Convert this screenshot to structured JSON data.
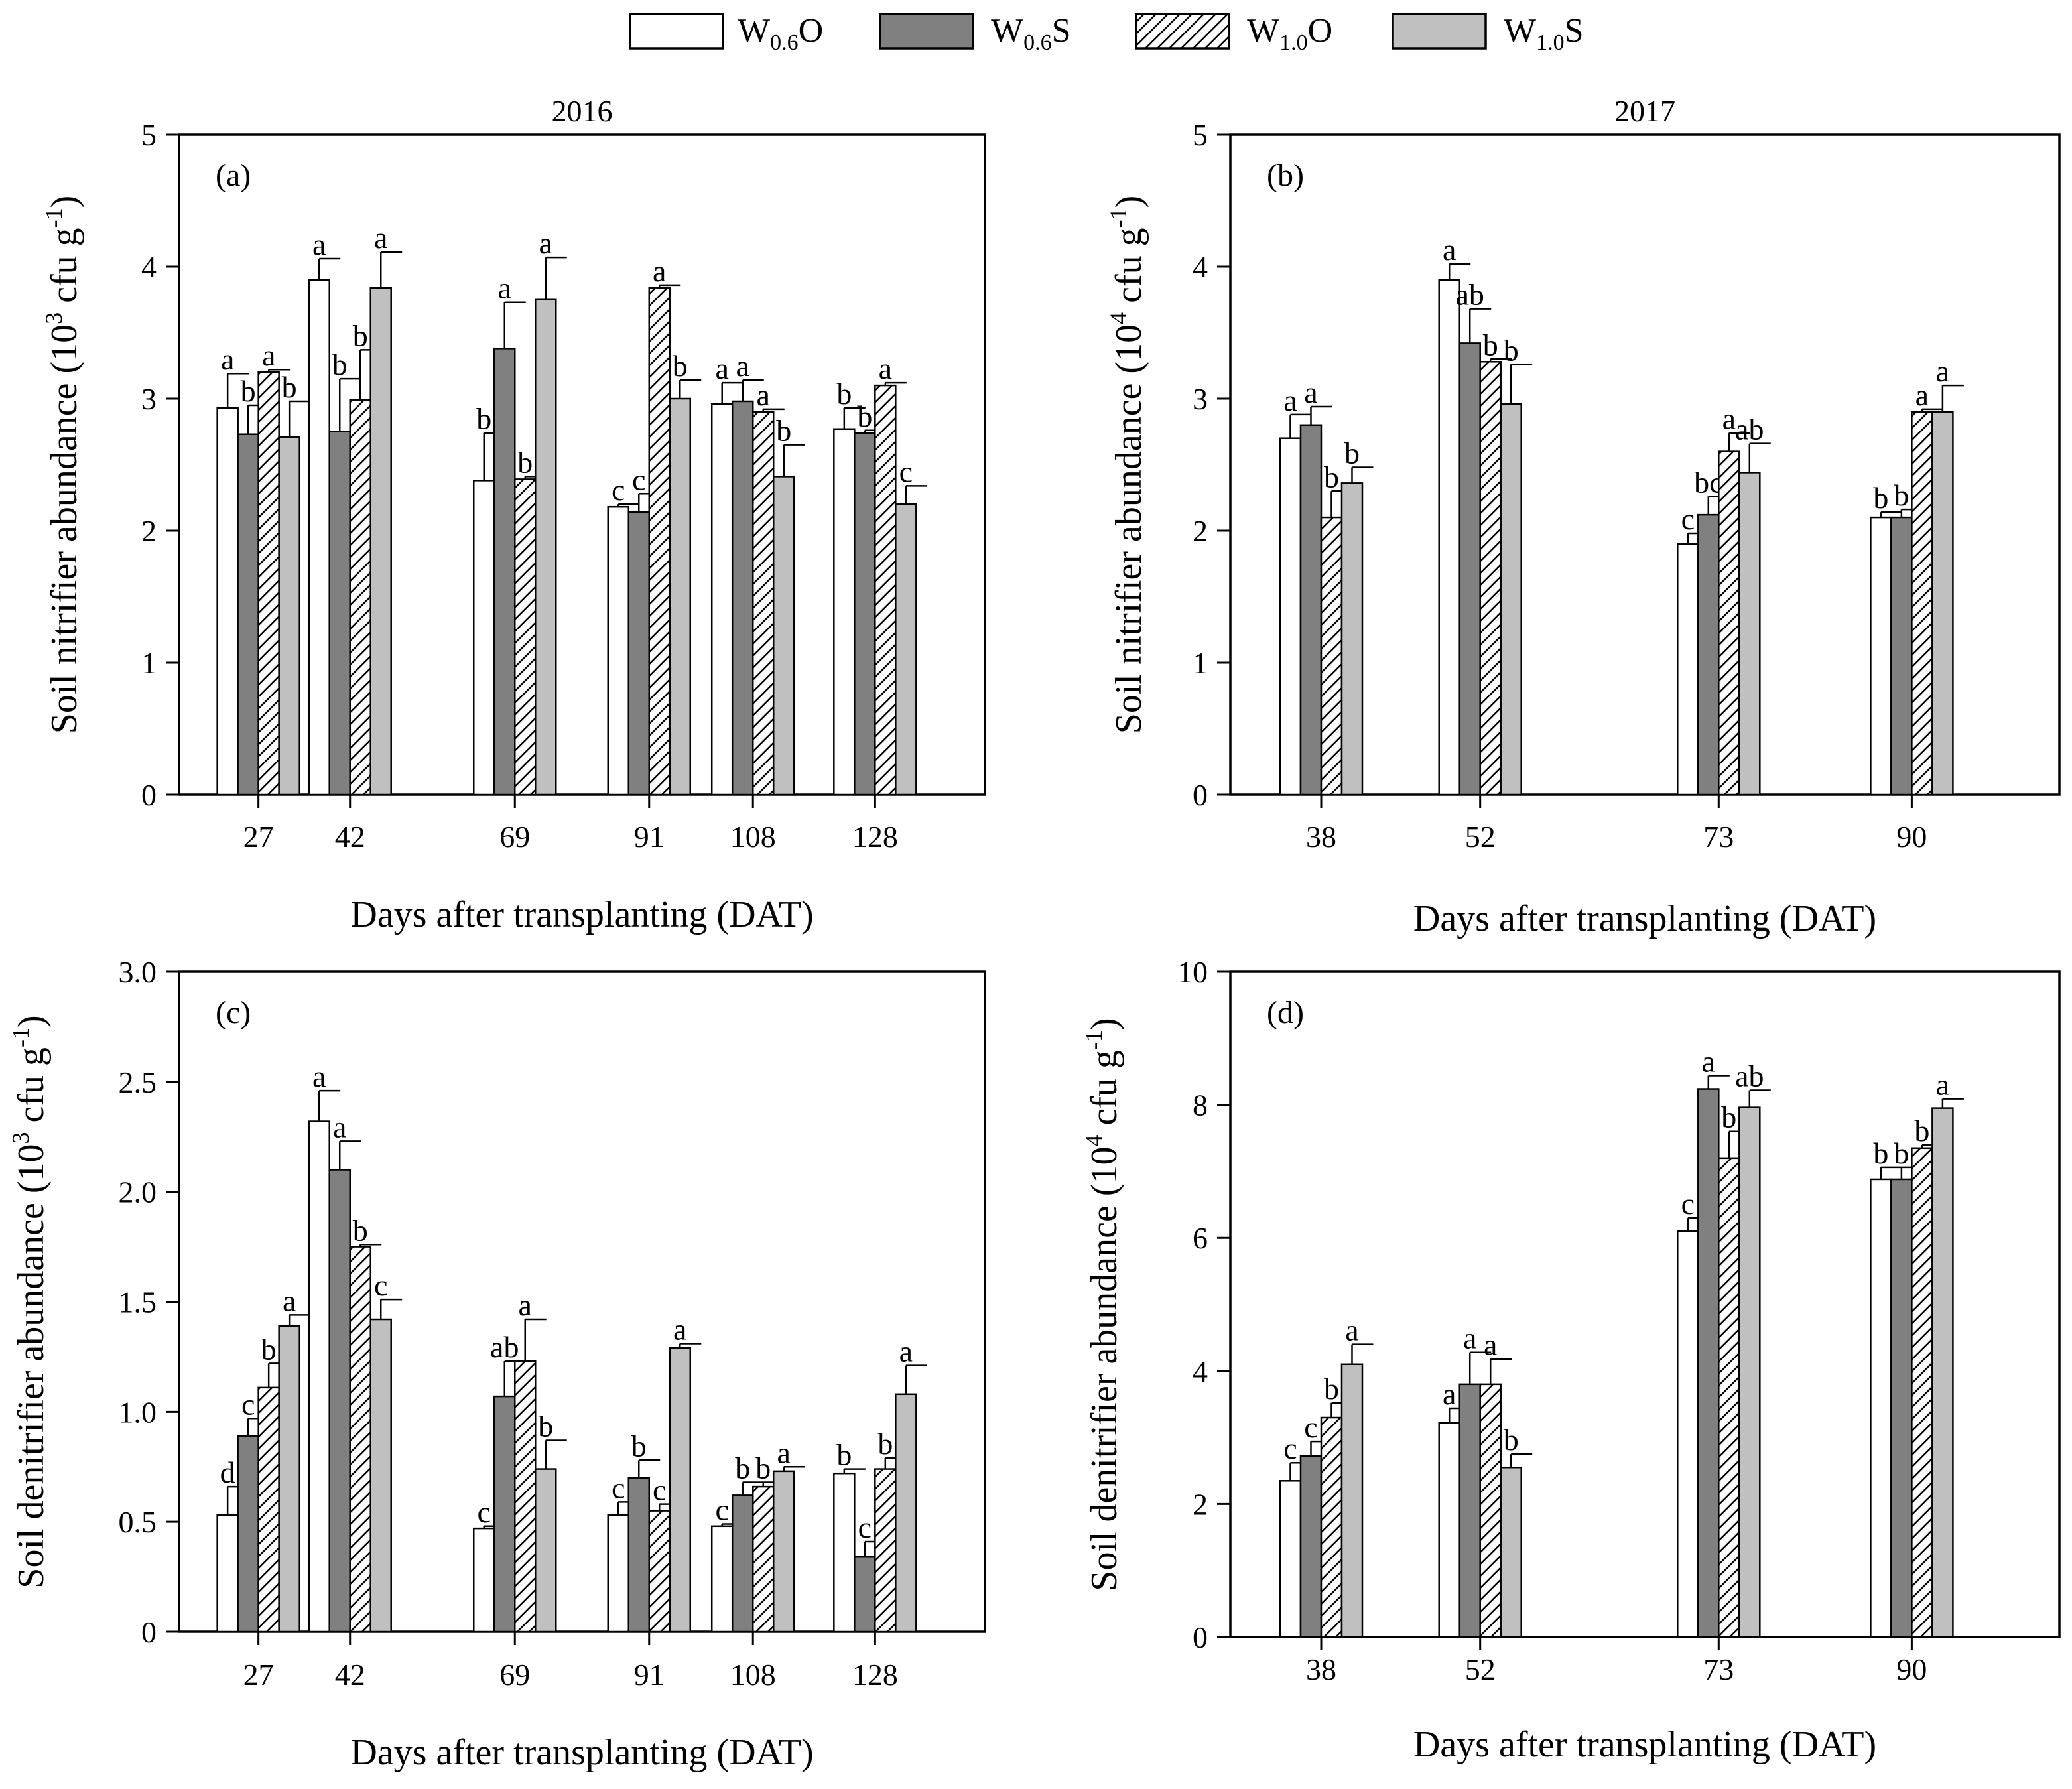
{
  "legend": [
    {
      "base": "W",
      "sub": "0.6",
      "suffix": "O",
      "style": "white"
    },
    {
      "base": "W",
      "sub": "0.6",
      "suffix": "S",
      "style": "dark"
    },
    {
      "base": "W",
      "sub": "1.0",
      "suffix": "O",
      "style": "hatch"
    },
    {
      "base": "W",
      "sub": "1.0",
      "suffix": "S",
      "style": "light"
    }
  ],
  "colors": {
    "white": "#ffffff",
    "dark": "#808080",
    "light": "#c0c0c0",
    "stroke": "#000000"
  },
  "chart_data": [
    {
      "type": "bar",
      "tag": "(a)",
      "title": "2016",
      "xlabel": "Days after transplanting (DAT)",
      "ylabel_main": "Soil nitrifier abundance (10",
      "ylabel_exp": "3",
      "ylabel_unit": " cfu g",
      "ylabel_unit_exp": "-1",
      "ylabel_close": ")",
      "ylim": [
        0,
        5
      ],
      "yticks": [
        0,
        1,
        2,
        3,
        4,
        5
      ],
      "ytick_labels": [
        "0",
        "1",
        "2",
        "3",
        "4",
        "5"
      ],
      "xlim": [
        14,
        146
      ],
      "categories": [
        "27",
        "42",
        "69",
        "91",
        "108",
        "128"
      ],
      "x": [
        27,
        42,
        69,
        91,
        108,
        128
      ],
      "series": [
        {
          "name": "W0.6O",
          "values": [
            2.93,
            3.9,
            2.38,
            2.18,
            2.96,
            2.77
          ],
          "errors": [
            0.26,
            0.16,
            0.36,
            0.02,
            0.16,
            0.16
          ],
          "letters": [
            "a",
            "a",
            "b",
            "c",
            "a",
            "b"
          ]
        },
        {
          "name": "W0.6S",
          "values": [
            2.73,
            2.75,
            3.38,
            2.14,
            2.98,
            2.74
          ],
          "errors": [
            0.22,
            0.4,
            0.35,
            0.14,
            0.16,
            0.02
          ],
          "letters": [
            "b",
            "b",
            "a",
            "c",
            "a",
            "b"
          ]
        },
        {
          "name": "W1.0O",
          "values": [
            3.2,
            2.99,
            2.39,
            3.84,
            2.9,
            3.1
          ],
          "errors": [
            0.02,
            0.38,
            0.02,
            0.02,
            0.02,
            0.02
          ],
          "letters": [
            "a",
            "b",
            "b",
            "a",
            "a",
            "a"
          ]
        },
        {
          "name": "W1.0S",
          "values": [
            2.71,
            3.84,
            3.75,
            3.0,
            2.41,
            2.2
          ],
          "errors": [
            0.27,
            0.27,
            0.32,
            0.14,
            0.24,
            0.14
          ],
          "letters": [
            "b",
            "a",
            "a",
            "b",
            "b",
            "c"
          ]
        }
      ]
    },
    {
      "type": "bar",
      "tag": "(b)",
      "title": "2017",
      "xlabel": "Days after transplanting (DAT)",
      "ylabel_main": "Soil nitrifier abundance (10",
      "ylabel_exp": "4",
      "ylabel_unit": " cfu g",
      "ylabel_unit_exp": "-1",
      "ylabel_close": ")",
      "ylim": [
        0,
        5
      ],
      "yticks": [
        0,
        1,
        2,
        3,
        4,
        5
      ],
      "ytick_labels": [
        "0",
        "1",
        "2",
        "3",
        "4",
        "5"
      ],
      "xlim": [
        30,
        103
      ],
      "categories": [
        "38",
        "52",
        "73",
        "90"
      ],
      "x": [
        38,
        52,
        73,
        90
      ],
      "series": [
        {
          "name": "W0.6O",
          "values": [
            2.7,
            3.9,
            1.9,
            2.1
          ],
          "errors": [
            0.18,
            0.12,
            0.08,
            0.04
          ],
          "letters": [
            "a",
            "a",
            "c",
            "b"
          ]
        },
        {
          "name": "W0.6S",
          "values": [
            2.8,
            3.42,
            2.12,
            2.1
          ],
          "errors": [
            0.14,
            0.26,
            0.14,
            0.06
          ],
          "letters": [
            "a",
            "ab",
            "bc",
            "b"
          ]
        },
        {
          "name": "W1.0O",
          "values": [
            2.1,
            3.28,
            2.6,
            2.9
          ],
          "errors": [
            0.2,
            0.02,
            0.14,
            0.02
          ],
          "letters": [
            "b",
            "b",
            "a",
            "a"
          ]
        },
        {
          "name": "W1.0S",
          "values": [
            2.36,
            2.96,
            2.44,
            2.9
          ],
          "errors": [
            0.12,
            0.3,
            0.22,
            0.2
          ],
          "letters": [
            "b",
            "b",
            "ab",
            "a"
          ]
        }
      ]
    },
    {
      "type": "bar",
      "tag": "(c)",
      "title": "",
      "xlabel": "Days after transplanting (DAT)",
      "ylabel_main": "Soil denitrifier abundance (10",
      "ylabel_exp": "3",
      "ylabel_unit": " cfu g",
      "ylabel_unit_exp": "-1",
      "ylabel_close": ")",
      "ylim": [
        0,
        3
      ],
      "yticks": [
        0,
        0.5,
        1,
        1.5,
        2,
        2.5,
        3
      ],
      "ytick_labels": [
        "0",
        "0.5",
        "1.0",
        "1.5",
        "2.0",
        "2.5",
        "3.0"
      ],
      "xlim": [
        14,
        146
      ],
      "categories": [
        "27",
        "42",
        "69",
        "91",
        "108",
        "128"
      ],
      "x": [
        27,
        42,
        69,
        91,
        108,
        128
      ],
      "series": [
        {
          "name": "W0.6O",
          "values": [
            0.53,
            2.32,
            0.47,
            0.53,
            0.48,
            0.72
          ],
          "errors": [
            0.13,
            0.14,
            0.01,
            0.06,
            0.01,
            0.02
          ],
          "letters": [
            "d",
            "a",
            "c",
            "c",
            "c",
            "b"
          ]
        },
        {
          "name": "W0.6S",
          "values": [
            0.89,
            2.1,
            1.07,
            0.7,
            0.62,
            0.34
          ],
          "errors": [
            0.08,
            0.13,
            0.16,
            0.08,
            0.06,
            0.07
          ],
          "letters": [
            "c",
            "a",
            "ab",
            "b",
            "b",
            "c"
          ]
        },
        {
          "name": "W1.0O",
          "values": [
            1.11,
            1.75,
            1.23,
            0.55,
            0.66,
            0.74
          ],
          "errors": [
            0.11,
            0.01,
            0.19,
            0.03,
            0.02,
            0.05
          ],
          "letters": [
            "b",
            "b",
            "a",
            "c",
            "b",
            "b"
          ]
        },
        {
          "name": "W1.0S",
          "values": [
            1.39,
            1.42,
            0.74,
            1.29,
            0.73,
            1.08
          ],
          "errors": [
            0.05,
            0.09,
            0.13,
            0.02,
            0.02,
            0.13
          ],
          "letters": [
            "a",
            "c",
            "b",
            "a",
            "a",
            "a"
          ]
        }
      ]
    },
    {
      "type": "bar",
      "tag": "(d)",
      "title": "",
      "xlabel": "Days after transplanting (DAT)",
      "ylabel_main": "Soil denitrifier abundance (10",
      "ylabel_exp": "4",
      "ylabel_unit": " cfu g",
      "ylabel_unit_exp": "-1",
      "ylabel_close": ")",
      "ylim": [
        0,
        10
      ],
      "yticks": [
        0,
        2,
        4,
        6,
        8,
        10
      ],
      "ytick_labels": [
        "0",
        "2",
        "4",
        "6",
        "8",
        "10"
      ],
      "xlim": [
        30,
        103
      ],
      "categories": [
        "38",
        "52",
        "73",
        "90"
      ],
      "x": [
        38,
        52,
        73,
        90
      ],
      "series": [
        {
          "name": "W0.6O",
          "values": [
            2.35,
            3.22,
            6.1,
            6.88
          ],
          "errors": [
            0.27,
            0.22,
            0.2,
            0.18
          ],
          "letters": [
            "c",
            "a",
            "c",
            "b"
          ]
        },
        {
          "name": "W0.6S",
          "values": [
            2.72,
            3.8,
            8.24,
            6.88
          ],
          "errors": [
            0.22,
            0.48,
            0.2,
            0.18
          ],
          "letters": [
            "c",
            "a",
            "a",
            "b"
          ]
        },
        {
          "name": "W1.0O",
          "values": [
            3.3,
            3.8,
            7.2,
            7.35
          ],
          "errors": [
            0.22,
            0.38,
            0.4,
            0.05
          ],
          "letters": [
            "b",
            "a",
            "b",
            "b"
          ]
        },
        {
          "name": "W1.0S",
          "values": [
            4.1,
            2.55,
            7.96,
            7.95
          ],
          "errors": [
            0.3,
            0.2,
            0.26,
            0.14
          ],
          "letters": [
            "a",
            "b",
            "ab",
            "a"
          ]
        }
      ]
    }
  ]
}
